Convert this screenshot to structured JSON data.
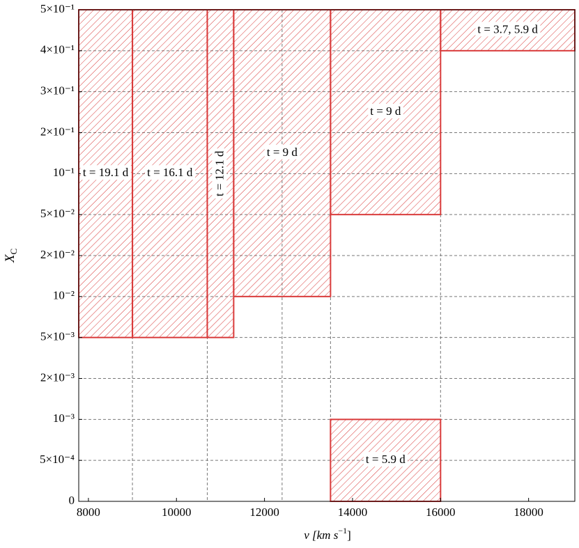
{
  "chart_data": {
    "type": "boxes",
    "xlabel": {
      "text": "v  [km  s",
      "sup": "−1",
      "end": "]"
    },
    "ylabel": {
      "text": "X",
      "sub": "C"
    },
    "xlim": [
      7780,
      19050
    ],
    "xticks": [
      8000,
      10000,
      12000,
      14000,
      16000,
      18000
    ],
    "x_gridlines": [
      9000,
      10700,
      12400,
      13500,
      16000
    ],
    "yscale": "piecewise-by-ticks",
    "yticks": [
      0,
      {
        "value": 0.0005,
        "label": "5×10⁻⁴"
      },
      {
        "value": 0.001,
        "label": "10⁻³"
      },
      {
        "value": 0.002,
        "label": "2×10⁻³"
      },
      {
        "value": 0.005,
        "label": "5×10⁻³"
      },
      {
        "value": 0.01,
        "label": "10⁻²"
      },
      {
        "value": 0.02,
        "label": "2×10⁻²"
      },
      {
        "value": 0.05,
        "label": "5×10⁻²"
      },
      {
        "value": 0.1,
        "label": "10⁻¹"
      },
      {
        "value": 0.2,
        "label": "2×10⁻¹"
      },
      {
        "value": 0.3,
        "label": "3×10⁻¹"
      },
      {
        "value": 0.4,
        "label": "4×10⁻¹"
      },
      {
        "value": 0.5,
        "label": "5×10⁻¹"
      }
    ],
    "grid": true,
    "color": "#d93a3a",
    "boxes": [
      {
        "x": [
          7780,
          9000
        ],
        "y": [
          0.005,
          0.5
        ],
        "label": "t = 19.1 d"
      },
      {
        "x": [
          9000,
          10700
        ],
        "y": [
          0.005,
          0.5
        ],
        "label": "t = 16.1 d"
      },
      {
        "x": [
          10700,
          11300
        ],
        "y": [
          0.005,
          0.5
        ],
        "label": "t = 12.1 d",
        "vertical_label": true
      },
      {
        "x": [
          11300,
          13500
        ],
        "y": [
          0.01,
          0.5
        ],
        "label": "t = 9 d"
      },
      {
        "x": [
          13500,
          16000
        ],
        "y": [
          0.05,
          0.5
        ],
        "label": "t = 9 d"
      },
      {
        "x": [
          16000,
          19050
        ],
        "y": [
          0.4,
          0.5
        ],
        "label": "t = 3.7,  5.9 d"
      },
      {
        "x": [
          13500,
          16000
        ],
        "y": [
          0,
          0.001
        ],
        "label": "t = 5.9 d"
      }
    ]
  }
}
